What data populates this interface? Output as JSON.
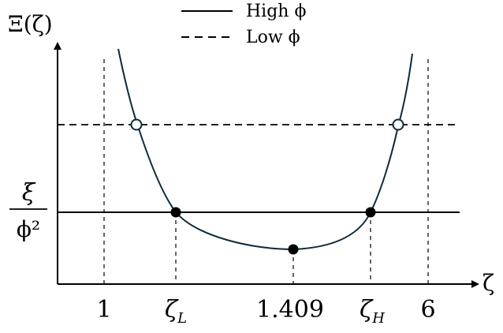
{
  "y_axis_label": "Ξ(ζ)",
  "x_axis_label": "ζ",
  "legend": [
    {
      "label": "High ϕ",
      "style": "solid"
    },
    {
      "label": "Low ϕ",
      "style": "dashed"
    }
  ],
  "y_marker": {
    "numerator": "ξ",
    "denominator": "ϕ²"
  },
  "x_ticks": [
    {
      "text": "1",
      "sub": ""
    },
    {
      "text": "ζ",
      "sub": "L"
    },
    {
      "text": "1.409",
      "sub": ""
    },
    {
      "text": "ζ",
      "sub": "H"
    },
    {
      "text": "6",
      "sub": ""
    }
  ],
  "colors": {
    "curve": "#0d2a3a",
    "lines": "#000000",
    "open_marker_fill": "#ffffff"
  }
}
